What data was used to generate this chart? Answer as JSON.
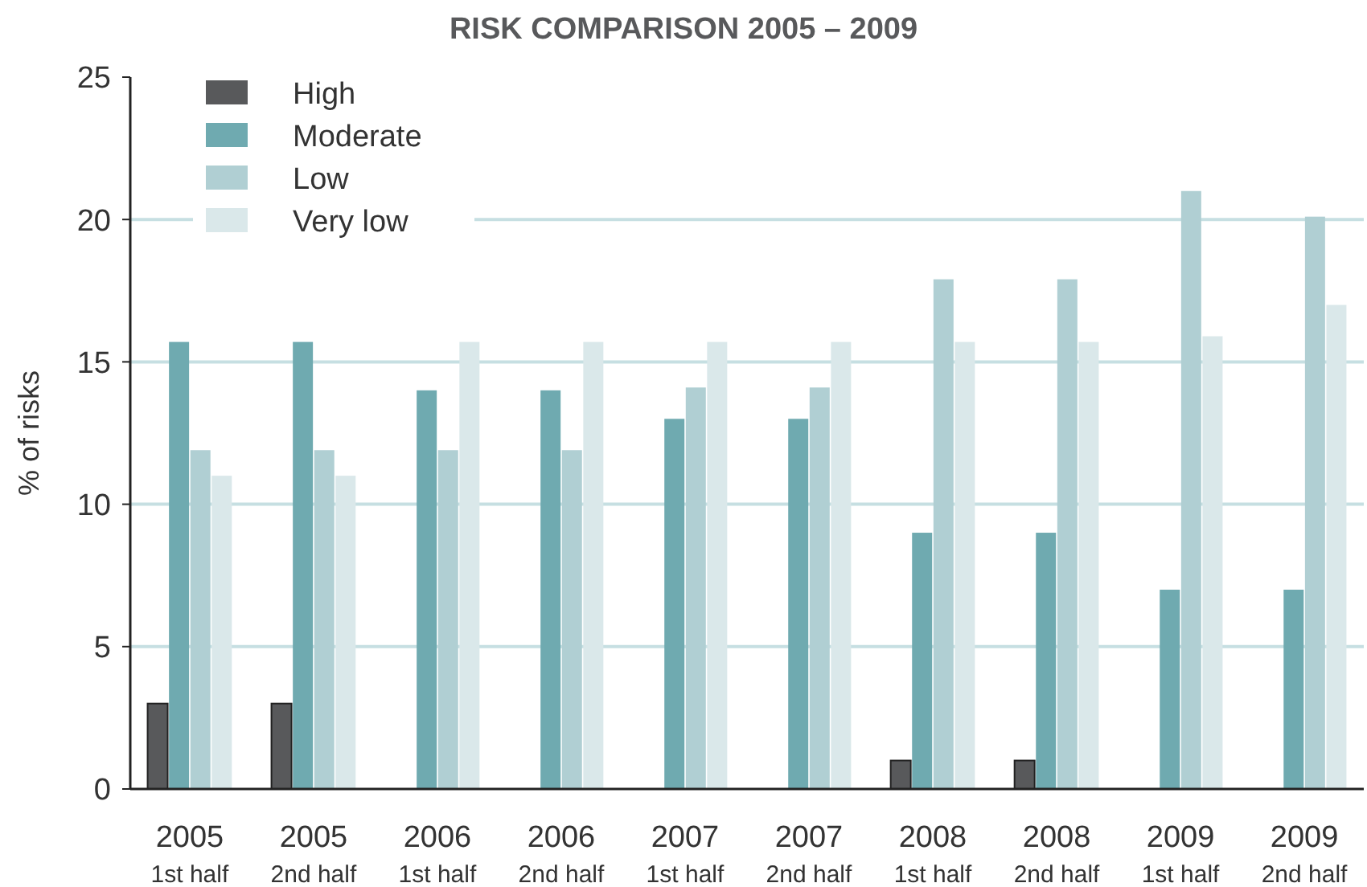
{
  "chart_data": {
    "type": "bar",
    "title": "RISK COMPARISON 2005 – 2009",
    "ylabel": "% of risks",
    "categories": [
      "2005\n1st half",
      "2005\n2nd half",
      "2006\n1st half",
      "2006\n2nd half",
      "2007\n1st half",
      "2007\n2nd half",
      "2008\n1st half",
      "2008\n2nd half",
      "2009\n1st half",
      "2009\n2nd half"
    ],
    "series": [
      {
        "name": "High",
        "color": "#58595b",
        "values": [
          3,
          3,
          0,
          0,
          0,
          0,
          1,
          1,
          0,
          0
        ]
      },
      {
        "name": "Moderate",
        "color": "#6faab0",
        "values": [
          15.7,
          15.7,
          14,
          14,
          13,
          13,
          9,
          9,
          7,
          7
        ]
      },
      {
        "name": "Low",
        "color": "#b0cfd3",
        "values": [
          11.9,
          11.9,
          11.9,
          11.9,
          14.1,
          14.1,
          17.9,
          17.9,
          21,
          20.1
        ]
      },
      {
        "name": "Very low",
        "color": "#dae8ea",
        "values": [
          11,
          11,
          15.7,
          15.7,
          15.7,
          15.7,
          15.7,
          15.7,
          15.9,
          17
        ]
      }
    ],
    "ylim": [
      0,
      25
    ],
    "yticks": [
      0,
      5,
      10,
      15,
      20,
      25
    ],
    "grid": "y",
    "legend": "top left"
  }
}
